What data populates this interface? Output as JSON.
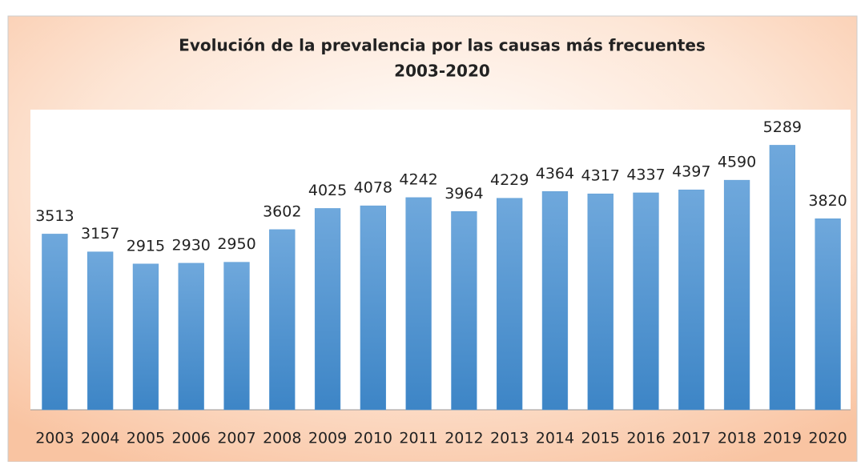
{
  "chart_data": {
    "type": "bar",
    "title": "Evolución de la prevalencia por las causas más frecuentes",
    "subtitle": "2003-2020",
    "categories": [
      "2003",
      "2004",
      "2005",
      "2006",
      "2007",
      "2008",
      "2009",
      "2010",
      "2011",
      "2012",
      "2013",
      "2014",
      "2015",
      "2016",
      "2017",
      "2018",
      "2019",
      "2020"
    ],
    "values": [
      3513,
      3157,
      2915,
      2930,
      2950,
      3602,
      4025,
      4078,
      4242,
      3964,
      4229,
      4364,
      4317,
      4337,
      4397,
      4590,
      5289,
      3820
    ],
    "color": "#5b9bd5",
    "ylim": [
      0,
      6000
    ]
  }
}
